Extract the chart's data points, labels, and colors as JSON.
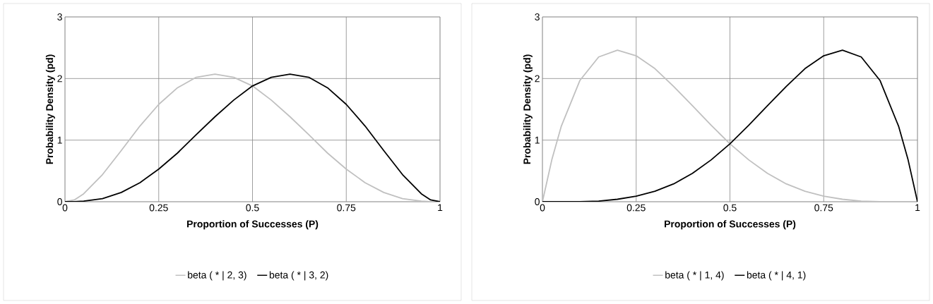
{
  "chart_data": [
    {
      "type": "line",
      "xlabel": "Proportion of Successes (P)",
      "ylabel": "Probability Density (pd)",
      "x": [
        0,
        0.025,
        0.05,
        0.1,
        0.15,
        0.2,
        0.25,
        0.3,
        0.35,
        0.4,
        0.45,
        0.5,
        0.55,
        0.6,
        0.65,
        0.7,
        0.75,
        0.8,
        0.85,
        0.9,
        0.95,
        0.975,
        1
      ],
      "series": [
        {
          "name": "beta ( * | 2, 3)",
          "color": "#c0c0c0",
          "values": [
            0,
            0.03,
            0.13,
            0.44,
            0.83,
            1.23,
            1.58,
            1.85,
            2.02,
            2.07,
            2.02,
            1.88,
            1.65,
            1.38,
            1.09,
            0.79,
            0.53,
            0.31,
            0.15,
            0.05,
            0.01,
            0,
            0
          ]
        },
        {
          "name": "beta ( * | 3, 2)",
          "color": "#000000",
          "values": [
            0,
            0,
            0.01,
            0.05,
            0.15,
            0.31,
            0.53,
            0.79,
            1.09,
            1.38,
            1.65,
            1.88,
            2.02,
            2.07,
            2.02,
            1.85,
            1.58,
            1.23,
            0.83,
            0.44,
            0.13,
            0.03,
            0
          ]
        }
      ],
      "xlim": [
        0,
        1
      ],
      "xticks": [
        0,
        0.25,
        0.5,
        0.75,
        1
      ],
      "ylim": [
        0,
        3
      ],
      "yticks": [
        0,
        1,
        2,
        3
      ],
      "grid": true,
      "legend": "bottom",
      "marker": "none",
      "line_style": "solid"
    },
    {
      "type": "line",
      "xlabel": "Proportion of Successes (P)",
      "ylabel": "Probability Density (pd)",
      "x": [
        0,
        0.025,
        0.05,
        0.1,
        0.15,
        0.2,
        0.25,
        0.3,
        0.35,
        0.4,
        0.45,
        0.5,
        0.55,
        0.6,
        0.65,
        0.7,
        0.75,
        0.8,
        0.85,
        0.9,
        0.95,
        0.975,
        1
      ],
      "series": [
        {
          "name": "beta ( * | 1, 4)",
          "color": "#c0c0c0",
          "values": [
            0,
            0.68,
            1.22,
            1.97,
            2.35,
            2.46,
            2.37,
            2.16,
            1.87,
            1.56,
            1.24,
            0.94,
            0.68,
            0.46,
            0.29,
            0.17,
            0.09,
            0.04,
            0.01,
            0,
            0,
            0,
            0
          ]
        },
        {
          "name": "beta ( * | 4, 1)",
          "color": "#000000",
          "values": [
            0,
            0,
            0,
            0,
            0.01,
            0.04,
            0.09,
            0.17,
            0.29,
            0.46,
            0.68,
            0.94,
            1.24,
            1.56,
            1.87,
            2.16,
            2.37,
            2.46,
            2.35,
            1.97,
            1.22,
            0.68,
            0
          ]
        }
      ],
      "xlim": [
        0,
        1
      ],
      "xticks": [
        0,
        0.25,
        0.5,
        0.75,
        1
      ],
      "ylim": [
        0,
        3
      ],
      "yticks": [
        0,
        1,
        2,
        3
      ],
      "grid": true,
      "legend": "bottom",
      "marker": "none",
      "line_style": "solid"
    }
  ]
}
